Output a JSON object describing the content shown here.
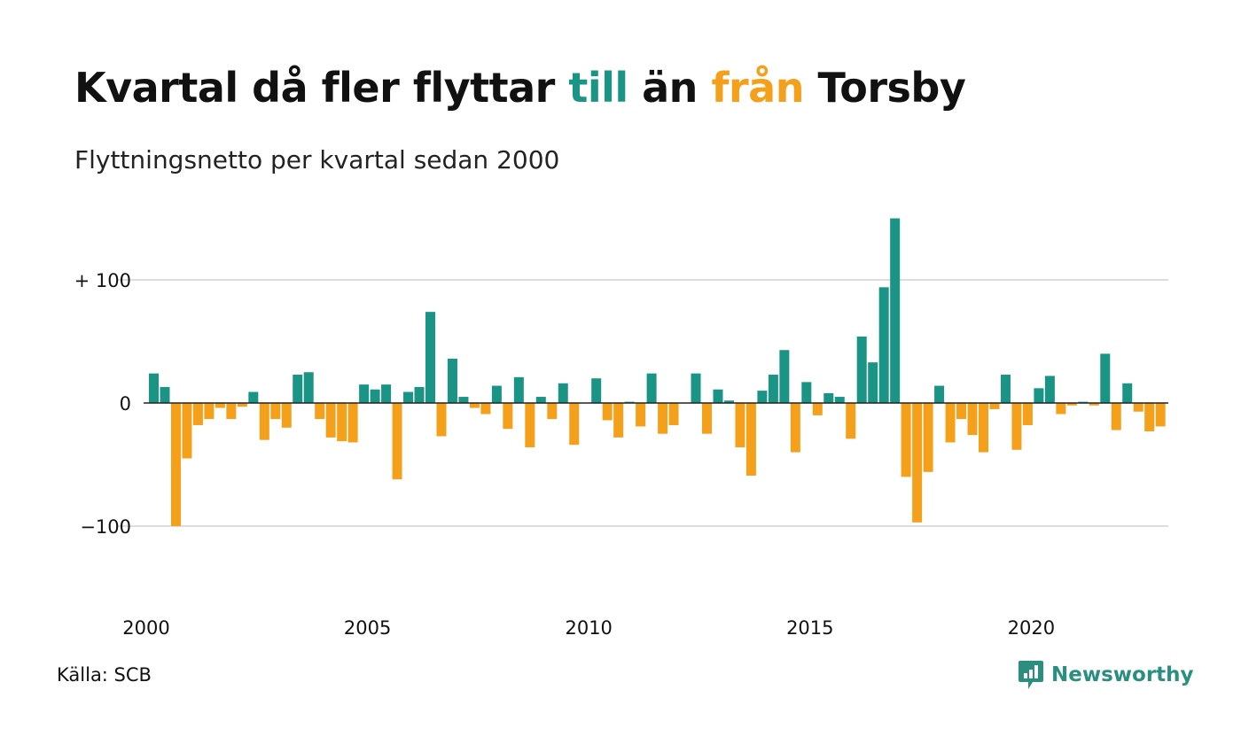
{
  "title": {
    "part1": "Kvartal då fler flyttar ",
    "part2": "till",
    "part3": " än ",
    "part4": "från",
    "part5": " Torsby"
  },
  "subtitle": "Flyttningsnetto per kvartal sedan 2000",
  "source": "Källa: SCB",
  "brand": "Newsworthy",
  "colors": {
    "positive": "#1a9485",
    "negative": "#f5a01a",
    "grid": "#dddddd",
    "logo": "#2b8f80"
  },
  "chart_data": {
    "type": "bar",
    "start": "2000 Q1",
    "frequency": "quarterly",
    "xticks": [
      "2000",
      "2005",
      "2010",
      "2015",
      "2020"
    ],
    "yticks": [
      {
        "value": 100,
        "label": "+ 100"
      },
      {
        "value": 0,
        "label": "0"
      },
      {
        "value": -100,
        "label": "−100"
      }
    ],
    "ylim": [
      -160,
      150
    ],
    "grid": true,
    "values": [
      24,
      13,
      -100,
      -45,
      -18,
      -13,
      -4,
      -13,
      -3,
      9,
      -30,
      -13,
      -20,
      23,
      25,
      -13,
      -28,
      -31,
      -32,
      15,
      11,
      15,
      -62,
      9,
      13,
      74,
      -27,
      36,
      5,
      -4,
      -9,
      14,
      -21,
      21,
      -36,
      5,
      -13,
      16,
      -34,
      0,
      20,
      -14,
      -28,
      1,
      -19,
      24,
      -25,
      -18,
      0,
      24,
      -25,
      11,
      2,
      -36,
      -59,
      10,
      23,
      43,
      -40,
      17,
      -10,
      8,
      5,
      -29,
      54,
      33,
      94,
      150,
      -60,
      -97,
      -56,
      14,
      -32,
      -13,
      -26,
      -40,
      -5,
      23,
      -38,
      -18,
      12,
      22,
      -9,
      -2,
      1,
      -2,
      40,
      -22,
      16,
      -7,
      -23,
      -19
    ]
  }
}
